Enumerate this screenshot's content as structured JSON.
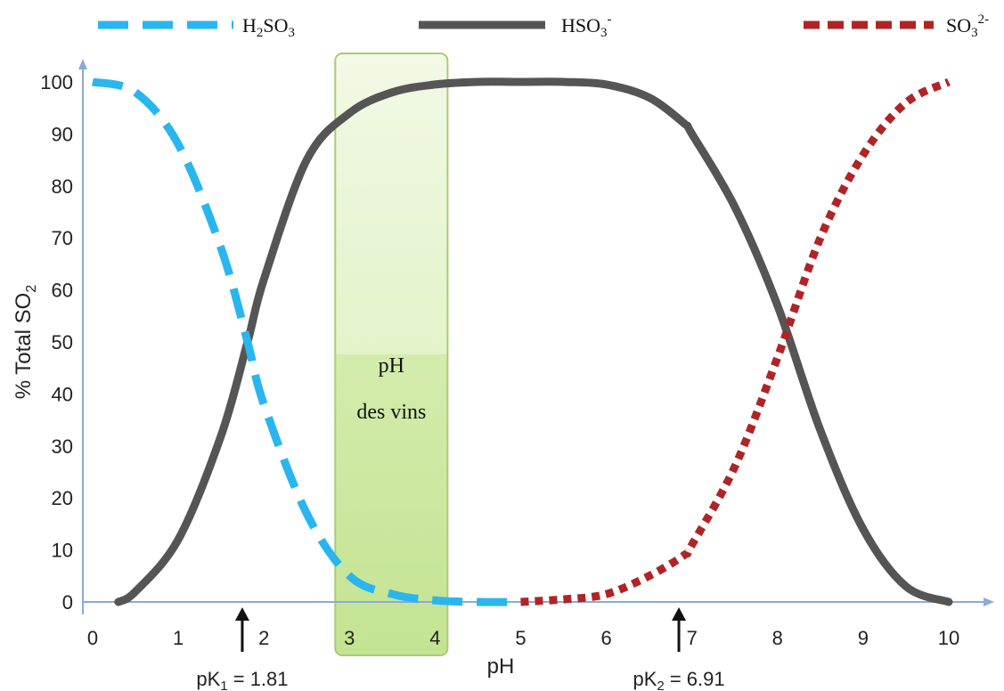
{
  "chart_data": {
    "type": "line",
    "title": "",
    "xlabel": "pH",
    "ylabel": {
      "main": "% Total SO",
      "sub": "2"
    },
    "xlim": [
      0,
      10
    ],
    "ylim": [
      0,
      100
    ],
    "x_ticks": [
      0,
      1,
      2,
      3,
      4,
      5,
      6,
      7,
      8,
      9,
      10
    ],
    "y_ticks": [
      0,
      10,
      20,
      30,
      40,
      50,
      60,
      70,
      80,
      90,
      100
    ],
    "grid": false,
    "legend_position": "top",
    "series": [
      {
        "id": "h2so3",
        "legend_parts": [
          {
            "text": "H",
            "sub": ""
          },
          {
            "text": "2",
            "sub": "sub"
          },
          {
            "text": "SO",
            "sub": ""
          },
          {
            "text": "3",
            "sub": "sub"
          }
        ],
        "color": "#29b6ef",
        "style": "dashed",
        "x": [
          0,
          0.5,
          1,
          1.5,
          1.81,
          2,
          2.5,
          3,
          3.5,
          4,
          4.5,
          5
        ],
        "y": [
          100,
          98,
          88,
          68,
          50,
          38,
          17,
          5,
          1.5,
          0.3,
          0,
          0
        ]
      },
      {
        "id": "hso3",
        "legend_parts": [
          {
            "text": "HSO",
            "sub": ""
          },
          {
            "text": "3",
            "sub": "sub"
          },
          {
            "text": "-",
            "sub": "sup"
          }
        ],
        "color": "#555555",
        "style": "solid",
        "x": [
          0.3,
          0.5,
          1,
          1.5,
          1.81,
          2,
          2.5,
          3,
          3.5,
          4,
          4.5,
          5,
          5.5,
          6,
          6.5,
          6.91,
          7,
          7.5,
          8,
          8.5,
          9,
          9.5,
          10
        ],
        "y": [
          0,
          2,
          12,
          32,
          50,
          62,
          85,
          94,
          98,
          99.5,
          100,
          100,
          100,
          99.5,
          97,
          92,
          90,
          76,
          57,
          33,
          14,
          3,
          0
        ]
      },
      {
        "id": "so32",
        "legend_parts": [
          {
            "text": "SO",
            "sub": ""
          },
          {
            "text": "3",
            "sub": "sub"
          },
          {
            "text": "2-",
            "sub": "sup"
          }
        ],
        "color": "#b02426",
        "style": "dotted",
        "x": [
          5,
          5.5,
          6,
          6.5,
          6.91,
          7,
          7.5,
          8,
          8.5,
          9,
          9.5,
          10
        ],
        "y": [
          0,
          0.5,
          1.5,
          5,
          9,
          11,
          26,
          47,
          70,
          86,
          96,
          100
        ]
      }
    ],
    "band": {
      "x_range": [
        3,
        4
      ],
      "label_line1": "pH",
      "label_line2": "des vins",
      "color": "#bfe38a"
    },
    "annotations": [
      {
        "x": 1.81,
        "label_main": "pK",
        "label_sub": "1",
        "label_rest": " = 1.81"
      },
      {
        "x": 6.91,
        "label_main": "pK",
        "label_sub": "2",
        "label_rest": " = 6.91"
      }
    ]
  },
  "colors": {
    "axis": "#8aaad8",
    "arrow": "#111111"
  }
}
